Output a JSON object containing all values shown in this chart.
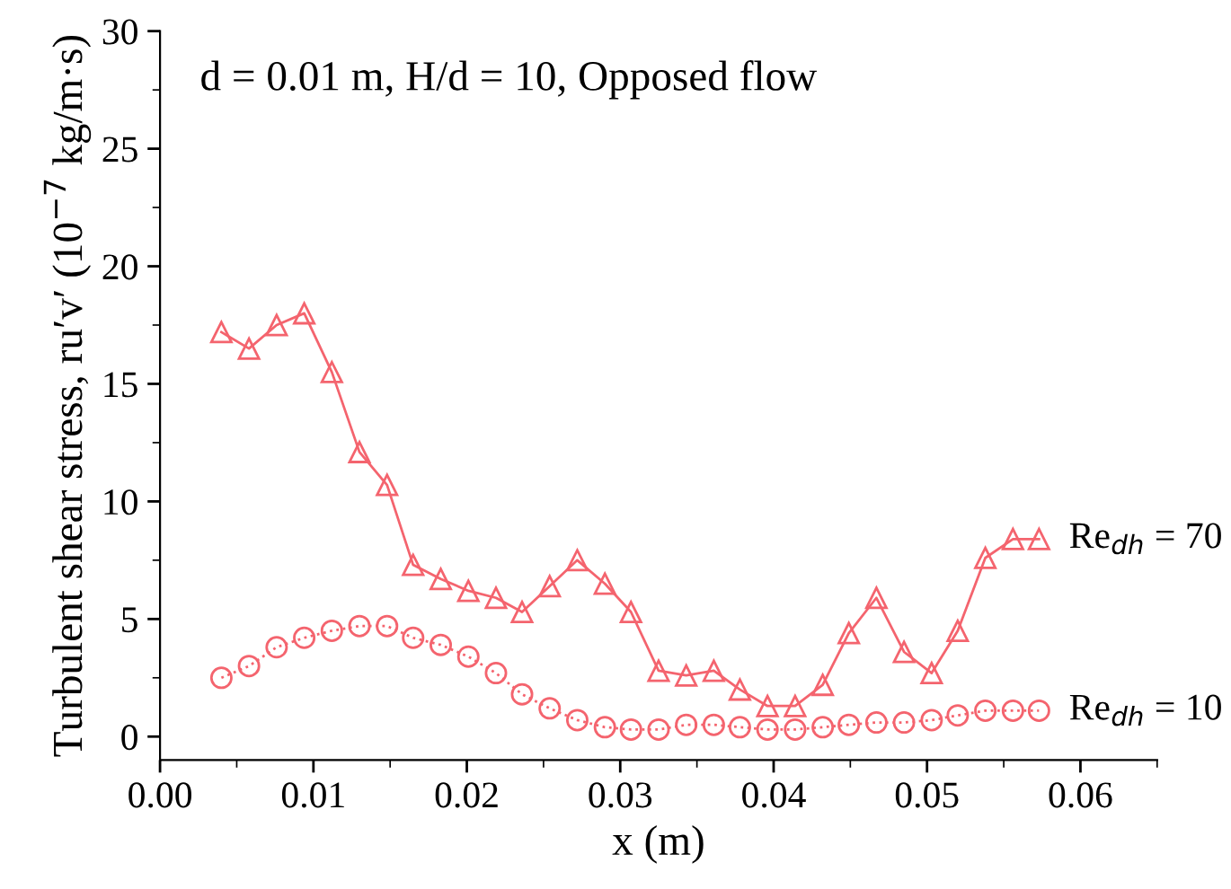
{
  "chart_data": {
    "type": "line",
    "annotations": [
      "d = 0.01 m, H/d = 10, Opposed flow"
    ],
    "xlabel": "x (m)",
    "ylabel": "Turbulent shear stress, ru′v′ (10$^{−7}$ kg/m·s)",
    "x": [
      0.004,
      0.0058,
      0.0076,
      0.0094,
      0.0112,
      0.013,
      0.0148,
      0.0165,
      0.0183,
      0.0201,
      0.0219,
      0.0236,
      0.0254,
      0.0272,
      0.029,
      0.0307,
      0.0325,
      0.0343,
      0.0361,
      0.0378,
      0.0396,
      0.0414,
      0.0432,
      0.0449,
      0.0467,
      0.0485,
      0.0503,
      0.052,
      0.0538,
      0.0556,
      0.0573
    ],
    "series": [
      {
        "name": "Re$_{dh}$ = 70",
        "color": "#f4646e",
        "marker": "triangle",
        "line_style": "solid",
        "values": [
          17.2,
          16.5,
          17.5,
          18.0,
          15.5,
          12.1,
          10.7,
          7.3,
          6.7,
          6.2,
          5.9,
          5.3,
          6.4,
          7.5,
          6.5,
          5.3,
          2.8,
          2.6,
          2.8,
          2.0,
          1.3,
          1.3,
          2.2,
          4.4,
          5.9,
          3.6,
          2.7,
          4.5,
          7.6,
          8.4,
          8.4
        ]
      },
      {
        "name": "Re$_{dh}$ = 10",
        "color": "#f4646e",
        "marker": "circle",
        "line_style": "dotted",
        "values": [
          2.5,
          3.0,
          3.8,
          4.2,
          4.5,
          4.7,
          4.7,
          4.2,
          3.9,
          3.4,
          2.7,
          1.8,
          1.2,
          0.7,
          0.4,
          0.3,
          0.3,
          0.5,
          0.5,
          0.4,
          0.3,
          0.3,
          0.4,
          0.5,
          0.6,
          0.6,
          0.7,
          0.9,
          1.1,
          1.1,
          1.1
        ]
      }
    ],
    "xlim": [
      0,
      0.065
    ],
    "xticks": [
      {
        "value": 0,
        "label": "0.00"
      },
      {
        "value": 0.01,
        "label": "0.01"
      },
      {
        "value": 0.02,
        "label": "0.02"
      },
      {
        "value": 0.03,
        "label": "0.03"
      },
      {
        "value": 0.04,
        "label": "0.04"
      },
      {
        "value": 0.05,
        "label": "0.05"
      },
      {
        "value": 0.06,
        "label": "0.06"
      }
    ],
    "ylim": [
      -1,
      30
    ],
    "yticks": [
      0,
      5,
      10,
      15,
      20,
      25,
      30
    ],
    "grid": false,
    "legend": false
  }
}
